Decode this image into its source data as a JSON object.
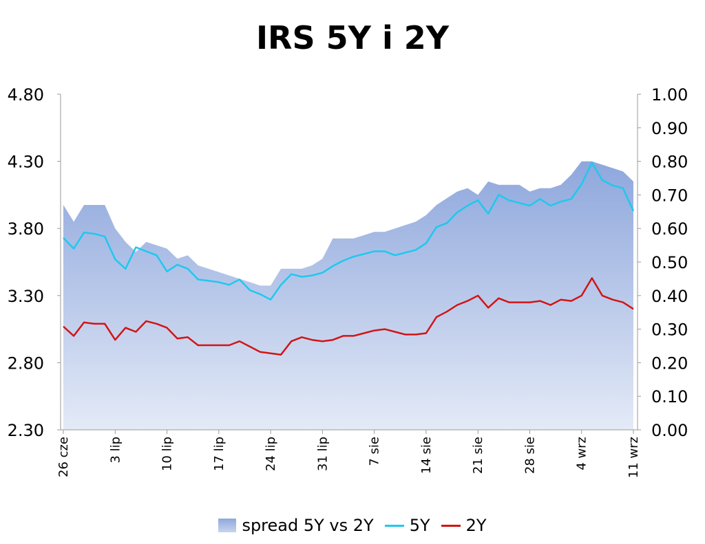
{
  "title": "IRS 5Y i 2Y",
  "colors": {
    "area_top": "#8ea7dc",
    "area_bottom": "#e4eaf7",
    "line_5y": "#1ec8ef",
    "line_2y": "#d21414"
  },
  "legend": {
    "spread": "spread 5Y vs 2Y",
    "five": "5Y",
    "two": "2Y"
  },
  "chart_data": {
    "type": "line",
    "title": "IRS 5Y i 2Y",
    "left_axis": {
      "ylim": [
        2.3,
        4.8
      ],
      "ticks": [
        "4.80",
        "4.30",
        "3.80",
        "3.30",
        "2.80",
        "2.30"
      ]
    },
    "right_axis": {
      "ylim": [
        0.0,
        1.0
      ],
      "ticks": [
        "1.00",
        "0.90",
        "0.80",
        "0.70",
        "0.60",
        "0.50",
        "0.40",
        "0.30",
        "0.20",
        "0.10",
        "0.00"
      ]
    },
    "x_tick_labels": [
      "26 cze",
      "3 lip",
      "10 lip",
      "17 lip",
      "24 lip",
      "31 lip",
      "7 sie",
      "14 sie",
      "21 sie",
      "28 sie",
      "4 wrz",
      "11 wrz"
    ],
    "x_tick_index": [
      0,
      5,
      10,
      15,
      20,
      25,
      30,
      35,
      40,
      45,
      50,
      55
    ],
    "grid": false,
    "legend_position": "bottom",
    "series": [
      {
        "name": "spread 5Y vs 2Y",
        "type": "area",
        "axis": "right",
        "values": [
          0.67,
          0.62,
          0.67,
          0.67,
          0.67,
          0.6,
          0.56,
          0.53,
          0.56,
          0.55,
          0.54,
          0.51,
          0.52,
          0.49,
          0.48,
          0.47,
          0.46,
          0.45,
          0.44,
          0.43,
          0.43,
          0.48,
          0.48,
          0.48,
          0.49,
          0.51,
          0.57,
          0.57,
          0.57,
          0.58,
          0.59,
          0.59,
          0.6,
          0.61,
          0.62,
          0.64,
          0.67,
          0.69,
          0.71,
          0.72,
          0.7,
          0.74,
          0.73,
          0.73,
          0.73,
          0.71,
          0.72,
          0.72,
          0.73,
          0.76,
          0.8,
          0.8,
          0.79,
          0.78,
          0.77,
          0.74
        ]
      },
      {
        "name": "5Y",
        "type": "line",
        "axis": "left",
        "values": [
          3.73,
          3.65,
          3.77,
          3.76,
          3.74,
          3.57,
          3.5,
          3.66,
          3.63,
          3.6,
          3.48,
          3.53,
          3.5,
          3.42,
          3.41,
          3.4,
          3.38,
          3.42,
          3.34,
          3.31,
          3.27,
          3.38,
          3.46,
          3.44,
          3.45,
          3.47,
          3.52,
          3.56,
          3.59,
          3.61,
          3.63,
          3.63,
          3.6,
          3.62,
          3.64,
          3.69,
          3.81,
          3.84,
          3.92,
          3.97,
          4.01,
          3.91,
          4.05,
          4.01,
          3.99,
          3.97,
          4.02,
          3.97,
          4.0,
          4.02,
          4.13,
          4.29,
          4.16,
          4.12,
          4.1,
          3.93
        ]
      },
      {
        "name": "2Y",
        "type": "line",
        "axis": "left",
        "values": [
          3.07,
          3.0,
          3.1,
          3.09,
          3.09,
          2.97,
          3.06,
          3.03,
          3.11,
          3.09,
          3.06,
          2.98,
          2.99,
          2.93,
          2.93,
          2.93,
          2.93,
          2.96,
          2.92,
          2.88,
          2.87,
          2.86,
          2.96,
          2.99,
          2.97,
          2.96,
          2.97,
          3.0,
          3.0,
          3.02,
          3.04,
          3.05,
          3.03,
          3.01,
          3.01,
          3.02,
          3.14,
          3.18,
          3.23,
          3.26,
          3.3,
          3.21,
          3.28,
          3.25,
          3.25,
          3.25,
          3.26,
          3.23,
          3.27,
          3.26,
          3.3,
          3.43,
          3.3,
          3.27,
          3.25,
          3.2
        ]
      }
    ]
  }
}
